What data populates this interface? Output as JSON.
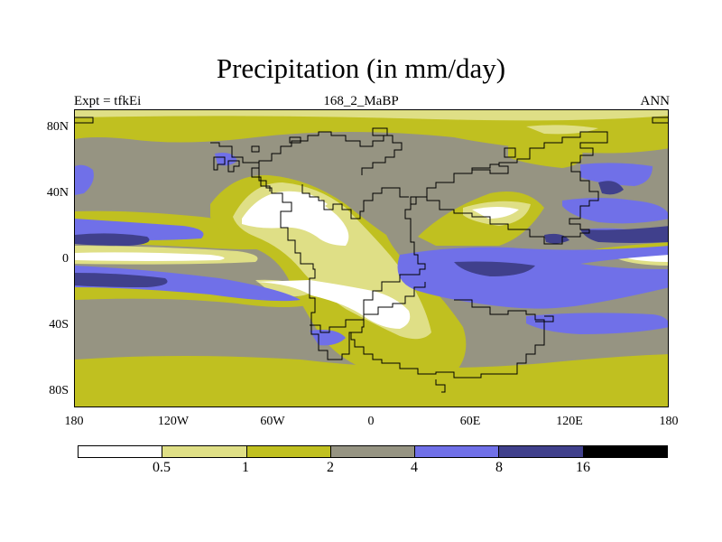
{
  "title": "Precipitation (in mm/day)",
  "subtitle": {
    "left": "Expt = tfkEi",
    "center": "168_2_MaBP",
    "right": "ANN"
  },
  "axes": {
    "y_ticks": [
      "80N",
      "40N",
      "0",
      "40S",
      "80S"
    ],
    "x_ticks": [
      "180",
      "120W",
      "60W",
      "0",
      "60E",
      "120E",
      "180"
    ]
  },
  "colorbar": {
    "colors": [
      "#ffffff",
      "#dfdf86",
      "#c0c020",
      "#969482",
      "#7070e8",
      "#40408c",
      "#000000"
    ],
    "labels": [
      "0.5",
      "1",
      "2",
      "4",
      "8",
      "16"
    ]
  }
}
